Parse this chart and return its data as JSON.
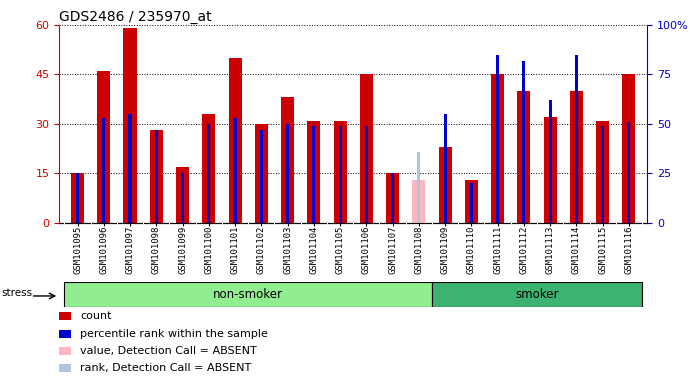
{
  "title": "GDS2486 / 235970_at",
  "samples": [
    "GSM101095",
    "GSM101096",
    "GSM101097",
    "GSM101098",
    "GSM101099",
    "GSM101100",
    "GSM101101",
    "GSM101102",
    "GSM101103",
    "GSM101104",
    "GSM101105",
    "GSM101106",
    "GSM101107",
    "GSM101108",
    "GSM101109",
    "GSM101110",
    "GSM101111",
    "GSM101112",
    "GSM101113",
    "GSM101114",
    "GSM101115",
    "GSM101116"
  ],
  "count": [
    15,
    46,
    59,
    28,
    17,
    33,
    50,
    30,
    38,
    31,
    31,
    45,
    15,
    0,
    23,
    13,
    45,
    40,
    32,
    40,
    31,
    45
  ],
  "rank_pct": [
    25,
    53,
    55,
    47,
    25,
    50,
    53,
    47,
    50,
    49,
    49,
    49,
    25,
    0,
    55,
    20,
    85,
    82,
    62,
    85,
    49,
    51
  ],
  "absent": [
    false,
    false,
    false,
    false,
    false,
    false,
    false,
    false,
    false,
    false,
    false,
    false,
    false,
    true,
    false,
    false,
    false,
    false,
    false,
    false,
    false,
    false
  ],
  "absent_count": [
    0,
    0,
    0,
    0,
    0,
    0,
    0,
    0,
    0,
    0,
    0,
    0,
    0,
    13,
    0,
    0,
    0,
    0,
    0,
    0,
    0,
    0
  ],
  "absent_rank_pct": [
    0,
    0,
    0,
    0,
    0,
    0,
    0,
    0,
    0,
    0,
    0,
    0,
    0,
    36,
    0,
    0,
    0,
    0,
    0,
    0,
    0,
    0
  ],
  "group": [
    "non-smoker",
    "non-smoker",
    "non-smoker",
    "non-smoker",
    "non-smoker",
    "non-smoker",
    "non-smoker",
    "non-smoker",
    "non-smoker",
    "non-smoker",
    "non-smoker",
    "non-smoker",
    "non-smoker",
    "non-smoker",
    "smoker",
    "smoker",
    "smoker",
    "smoker",
    "smoker",
    "smoker",
    "smoker",
    "smoker"
  ],
  "ylim_left": [
    0,
    60
  ],
  "ylim_right": [
    0,
    100
  ],
  "yticks_left": [
    0,
    15,
    30,
    45,
    60
  ],
  "yticks_right": [
    0,
    25,
    50,
    75,
    100
  ],
  "bar_width": 0.5,
  "rank_bar_width": 0.12,
  "count_color": "#cc0000",
  "rank_color": "#0000cc",
  "absent_count_color": "#ffb6c1",
  "absent_rank_color": "#b0c4de",
  "nonsmoker_color": "#90ee90",
  "smoker_color": "#3cb371",
  "left_axis_color": "#cc0000",
  "right_axis_color": "#0000cc",
  "tick_bg_color": "#c8c8c8",
  "title_fontsize": 10,
  "tick_fontsize": 6.5,
  "legend_fontsize": 8
}
